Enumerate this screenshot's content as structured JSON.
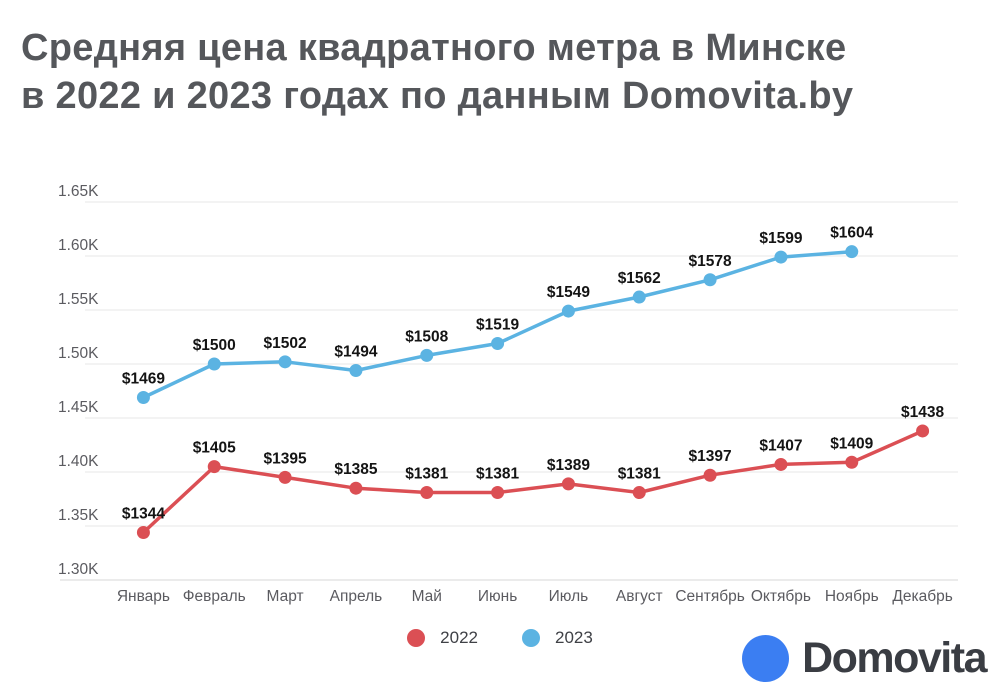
{
  "title": {
    "line1": "Средняя цена квадратного метра в Минске",
    "line2": "в 2022 и 2023 годах по данным Domovita.by"
  },
  "chart_data": {
    "type": "line",
    "categories": [
      "Январь",
      "Февраль",
      "Март",
      "Апрель",
      "Май",
      "Июнь",
      "Июль",
      "Август",
      "Сентябрь",
      "Октябрь",
      "Ноябрь",
      "Декабрь"
    ],
    "series": [
      {
        "name": "2022",
        "color": "#db4f54",
        "values": [
          1344,
          1405,
          1395,
          1385,
          1381,
          1381,
          1389,
          1381,
          1397,
          1407,
          1409,
          1438
        ]
      },
      {
        "name": "2023",
        "color": "#5bb3e2",
        "values": [
          1469,
          1500,
          1502,
          1494,
          1508,
          1519,
          1549,
          1562,
          1578,
          1599,
          1604,
          null
        ]
      }
    ],
    "ylim": [
      1300,
      1650
    ],
    "yticks": [
      1300,
      1350,
      1400,
      1450,
      1500,
      1550,
      1600,
      1650
    ],
    "ytick_labels": [
      "1.30K",
      "1.35K",
      "1.40K",
      "1.45K",
      "1.50K",
      "1.55K",
      "1.60K",
      "1.65K"
    ],
    "label_prefix": "$",
    "grid": true,
    "legend_position": "bottom",
    "xlabel": "",
    "ylabel": ""
  },
  "legend": {
    "items": [
      {
        "label": "2022",
        "color": "#db4f54"
      },
      {
        "label": "2023",
        "color": "#5bb3e2"
      }
    ]
  },
  "logo": {
    "text": "Domovita",
    "circle_color": "#3b7ef2"
  },
  "colors": {
    "title": "#55575b",
    "axis_label": "#5b5b60",
    "gridline": "#e7e7e7",
    "baseline": "#d7d7d7",
    "data_label": "#141414"
  }
}
